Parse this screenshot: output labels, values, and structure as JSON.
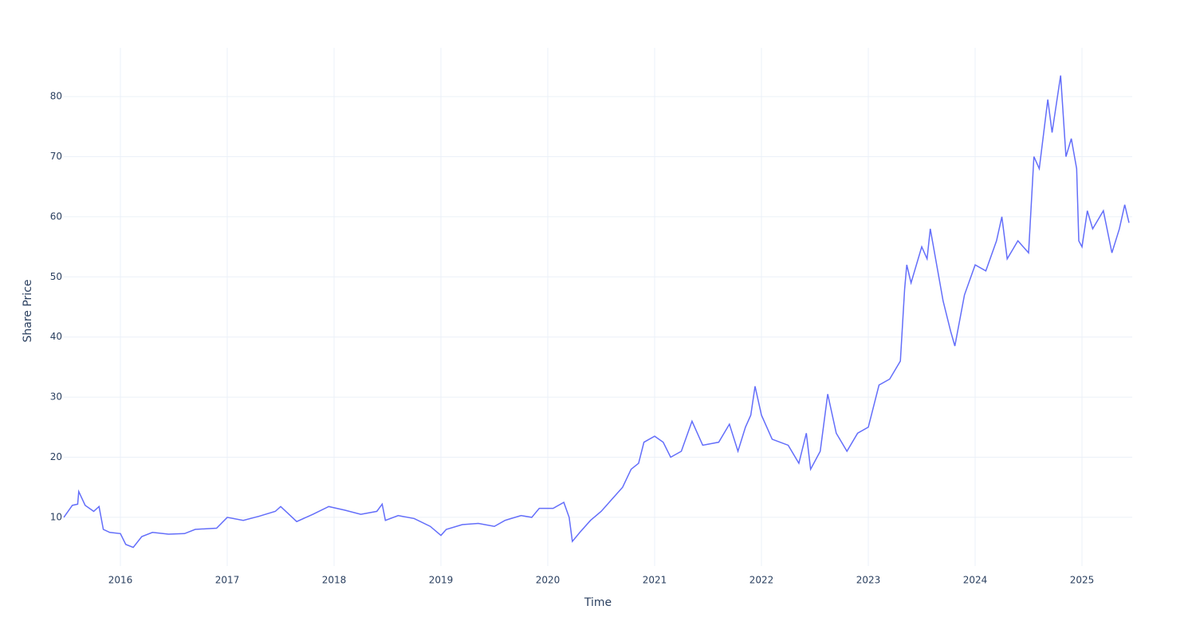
{
  "chart_data": {
    "type": "line",
    "x_label": "Time",
    "y_label": "Share Price",
    "x": [
      2015.47,
      2015.55,
      2015.6,
      2015.61,
      2015.67,
      2015.75,
      2015.8,
      2015.84,
      2015.9,
      2016.0,
      2016.05,
      2016.12,
      2016.2,
      2016.3,
      2016.45,
      2016.6,
      2016.7,
      2016.9,
      2017.0,
      2017.15,
      2017.3,
      2017.45,
      2017.5,
      2017.65,
      2017.8,
      2017.95,
      2018.1,
      2018.25,
      2018.4,
      2018.45,
      2018.48,
      2018.6,
      2018.75,
      2018.9,
      2019.0,
      2019.05,
      2019.2,
      2019.35,
      2019.5,
      2019.6,
      2019.75,
      2019.85,
      2019.92,
      2020.05,
      2020.15,
      2020.2,
      2020.23,
      2020.3,
      2020.4,
      2020.5,
      2020.6,
      2020.7,
      2020.78,
      2020.85,
      2020.9,
      2021.0,
      2021.08,
      2021.15,
      2021.25,
      2021.35,
      2021.45,
      2021.6,
      2021.7,
      2021.78,
      2021.85,
      2021.9,
      2021.94,
      2022.0,
      2022.1,
      2022.25,
      2022.35,
      2022.42,
      2022.46,
      2022.55,
      2022.62,
      2022.7,
      2022.8,
      2022.9,
      2023.0,
      2023.1,
      2023.2,
      2023.3,
      2023.34,
      2023.36,
      2023.4,
      2023.5,
      2023.55,
      2023.58,
      2023.65,
      2023.7,
      2023.77,
      2023.81,
      2023.9,
      2024.0,
      2024.1,
      2024.2,
      2024.25,
      2024.3,
      2024.4,
      2024.5,
      2024.55,
      2024.6,
      2024.68,
      2024.72,
      2024.8,
      2024.85,
      2024.9,
      2024.95,
      2024.97,
      2025.0,
      2025.05,
      2025.1,
      2025.2,
      2025.28,
      2025.35,
      2025.4,
      2025.44
    ],
    "series": [
      {
        "name": "Share Price",
        "color": "#636efa",
        "values": [
          10,
          12,
          12.2,
          14.3,
          12,
          11,
          11.8,
          8,
          7.5,
          7.3,
          5.5,
          5,
          6.8,
          7.5,
          7.2,
          7.3,
          8,
          8.2,
          10,
          9.5,
          10.2,
          11,
          11.8,
          9.3,
          10.5,
          11.8,
          11.2,
          10.5,
          11,
          12.2,
          9.5,
          10.3,
          9.8,
          8.5,
          7,
          8,
          8.8,
          9,
          8.5,
          9.5,
          10.3,
          10,
          11.5,
          11.5,
          12.5,
          10,
          6,
          7.5,
          9.5,
          11,
          13,
          15,
          18,
          19,
          22.5,
          23.5,
          22.5,
          20,
          21,
          26,
          22,
          22.5,
          25.5,
          21,
          25,
          27,
          31.8,
          27,
          23,
          22,
          19,
          24,
          18,
          21,
          30.5,
          24,
          21,
          24,
          25,
          32,
          33,
          36,
          48,
          52,
          49,
          55,
          53,
          58,
          51,
          46,
          41,
          38.5,
          47,
          52,
          51,
          56,
          60,
          53,
          56,
          54,
          70,
          68,
          79.5,
          74,
          83.5,
          70,
          73,
          68,
          56,
          55,
          61,
          58,
          61,
          54,
          58,
          62,
          59
        ]
      }
    ],
    "xlim": [
      2015.47,
      2025.47
    ],
    "xticks": [
      2016,
      2017,
      2018,
      2019,
      2020,
      2021,
      2022,
      2023,
      2024,
      2025
    ],
    "ylim": [
      1.9,
      88.1
    ],
    "yticks": [
      10,
      20,
      30,
      40,
      50,
      60,
      70,
      80
    ],
    "grid": true
  }
}
